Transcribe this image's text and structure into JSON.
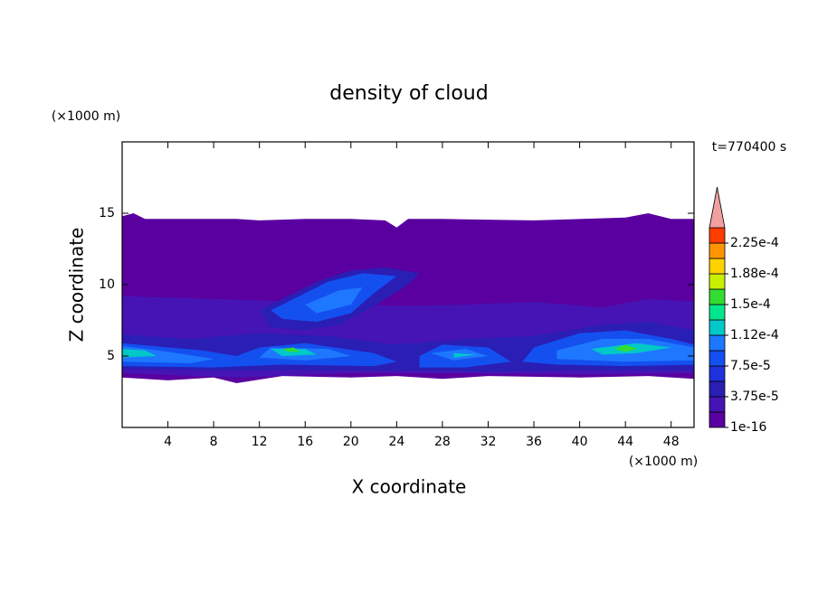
{
  "chart_data": {
    "type": "contour",
    "title": "density of cloud",
    "x_label": "X coordinate",
    "y_label": "Z coordinate",
    "x_unit": "(×1000 m)",
    "y_unit": "(×1000 m)",
    "annotation": "t=770400 s",
    "xlim": [
      0,
      50
    ],
    "ylim": [
      0,
      20
    ],
    "xticks": [
      4,
      8,
      12,
      16,
      20,
      24,
      28,
      32,
      36,
      40,
      44,
      48
    ],
    "yticks": [
      5,
      10,
      15
    ],
    "colorbar": {
      "levels": [
        1e-16,
        1.875e-05,
        3.75e-05,
        5.625e-05,
        7.5e-05,
        9.375e-05,
        0.0001125,
        0.00013125,
        0.00015,
        0.00016875,
        0.0001875,
        0.00020625,
        0.000225,
        0.00024375
      ],
      "colors": [
        "#5a00a0",
        "#4614b4",
        "#2a1eb4",
        "#1e32dc",
        "#1450f0",
        "#1e78ff",
        "#00c8c8",
        "#00e68c",
        "#32dc32",
        "#c8f000",
        "#ffd200",
        "#ff9600",
        "#ff3c00"
      ],
      "extend_color": "#f0a0a0",
      "ticks": [
        {
          "value": 1e-16,
          "label": "1e-16"
        },
        {
          "value": 3.75e-05,
          "label": "3.75e-5"
        },
        {
          "value": 7.5e-05,
          "label": "7.5e-5"
        },
        {
          "value": 0.0001125,
          "label": "1.12e-4"
        },
        {
          "value": 0.00015,
          "label": "1.5e-4"
        },
        {
          "value": 0.0001875,
          "label": "1.88e-4"
        },
        {
          "value": 0.000225,
          "label": "2.25e-4"
        }
      ]
    }
  }
}
